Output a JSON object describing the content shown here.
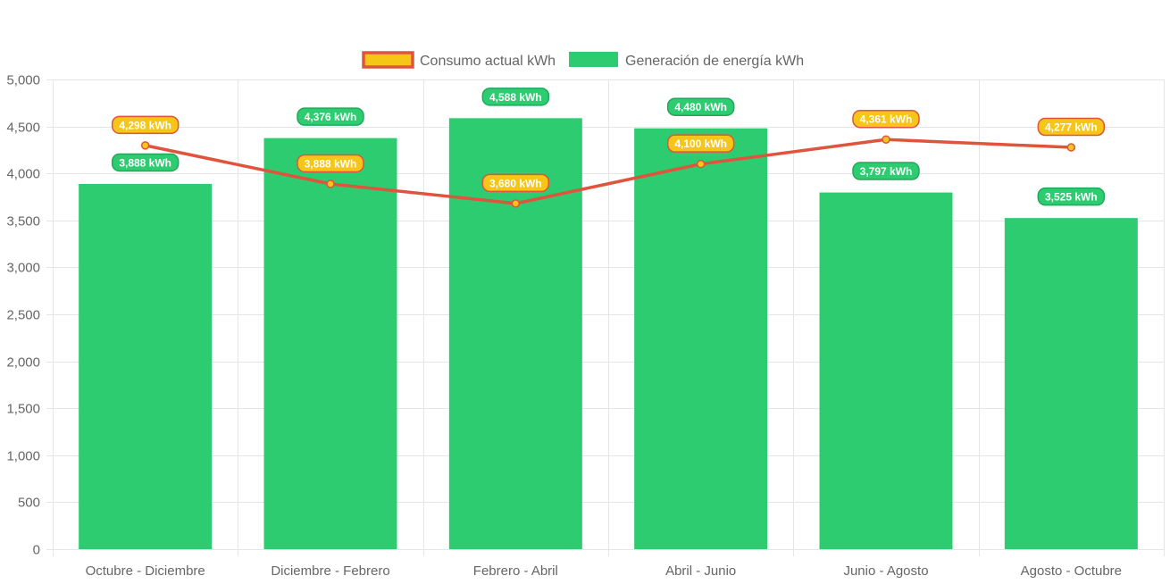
{
  "chart_data": {
    "type": "bar",
    "categories": [
      "Octubre - Diciembre",
      "Diciembre - Febrero",
      "Febrero - Abril",
      "Abril - Junio",
      "Junio - Agosto",
      "Agosto - Octubre"
    ],
    "series": [
      {
        "name": "Consumo actual kWh",
        "type": "line",
        "values": [
          4298,
          3888,
          3680,
          4100,
          4361,
          4277
        ],
        "data_labels": [
          "4,298 kWh",
          "3,888 kWh",
          "3,680 kWh",
          "4,100 kWh",
          "4,361 kWh",
          "4,277 kWh"
        ],
        "color": "#e0533d",
        "fill_color": "#f5c518"
      },
      {
        "name": "Generación de energía kWh",
        "type": "bar",
        "values": [
          3888,
          4376,
          4588,
          4480,
          3797,
          3525
        ],
        "data_labels": [
          "3,888 kWh",
          "4,376 kWh",
          "4,588 kWh",
          "4,480 kWh",
          "3,797 kWh",
          "3,525 kWh"
        ],
        "color": "#2ecc71"
      }
    ],
    "ylim": [
      0,
      5000
    ],
    "y_ticks": [
      0,
      500,
      1000,
      1500,
      2000,
      2500,
      3000,
      3500,
      4000,
      4500,
      5000
    ],
    "y_tick_labels": [
      "0",
      "500",
      "1,000",
      "1,500",
      "2,000",
      "2,500",
      "3,000",
      "3,500",
      "4,000",
      "4,500",
      "5,000"
    ],
    "grid": true,
    "legend_position": "top-center",
    "title": "",
    "xlabel": "",
    "ylabel": ""
  }
}
